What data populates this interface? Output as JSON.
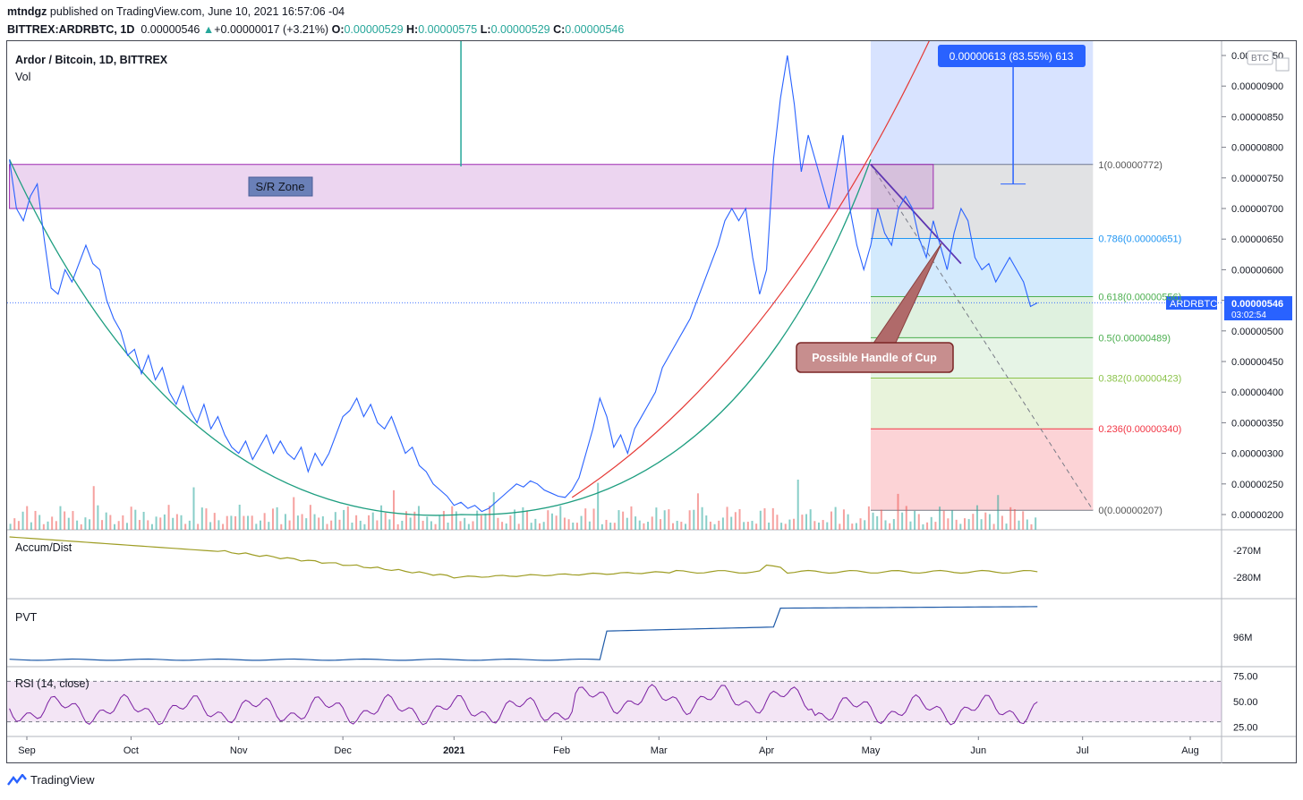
{
  "header": {
    "publisher": "mtndgz",
    "published_text": "published on TradingView.com, June 10, 2021 16:57:06 -04",
    "symbol": "BITTREX:ARDRBTC, 1D",
    "last": "0.00000546",
    "change": "+0.00000017 (+3.21%)",
    "open_label": "O:",
    "open": "0.00000529",
    "high_label": "H:",
    "high": "0.00000575",
    "low_label": "L:",
    "low": "0.00000529",
    "close_label": "C:",
    "close": "0.00000546"
  },
  "main_pane": {
    "title": "Ardor / Bitcoin, 1D, BITTREX",
    "vol_label": "Vol",
    "currency_badge": "BTC",
    "price_tag_symbol": "ARDRBTC",
    "price_tag_value": "0.00000546",
    "price_tag_timer": "03:02:54"
  },
  "annotations": {
    "sr_zone": "S/R Zone",
    "handle_label": "Possible Handle of Cup",
    "measure_label": "0.00000613 (83.55%) 613"
  },
  "fib_levels": [
    {
      "label": "1(0.00000772)",
      "value": 772,
      "color": "#787b86"
    },
    {
      "label": "0.786(0.00000651)",
      "value": 651,
      "color": "#2196f3"
    },
    {
      "label": "0.618(0.00000556)",
      "value": 556,
      "color": "#4caf50"
    },
    {
      "label": "0.5(0.00000489)",
      "value": 489,
      "color": "#4caf50"
    },
    {
      "label": "0.382(0.00000423)",
      "value": 423,
      "color": "#8bc34a"
    },
    {
      "label": "0.236(0.00000340)",
      "value": 340,
      "color": "#f23645"
    },
    {
      "label": "0(0.00000207)",
      "value": 207,
      "color": "#787b86"
    }
  ],
  "indicators": {
    "accum_label": "Accum/Dist",
    "accum_ticks": [
      "-270M",
      "-280M"
    ],
    "pvt_label": "PVT",
    "pvt_ticks": [
      "96M"
    ],
    "rsi_label": "RSI (14, close)",
    "rsi_ticks": [
      "75.00",
      "50.00",
      "25.00"
    ]
  },
  "footer": {
    "brand": "TradingView"
  },
  "chart_data": {
    "type": "line",
    "title": "Ardor / Bitcoin, 1D, BITTREX",
    "x_unit": "day",
    "x_labels": [
      {
        "label": "Sep",
        "day": 243
      },
      {
        "label": "Oct",
        "day": 273
      },
      {
        "label": "Nov",
        "day": 304
      },
      {
        "label": "Dec",
        "day": 334
      },
      {
        "label": "2021",
        "day": 366
      },
      {
        "label": "Feb",
        "day": 397
      },
      {
        "label": "Mar",
        "day": 425
      },
      {
        "label": "Apr",
        "day": 456
      },
      {
        "label": "May",
        "day": 486
      },
      {
        "label": "Jun",
        "day": 517
      },
      {
        "label": "Jul",
        "day": 547
      },
      {
        "label": "Aug",
        "day": 578
      }
    ],
    "y_unit": "satoshi (1e-8 BTC)",
    "y_range": [
      185,
      990
    ],
    "y_ticks": [
      "0.00000200",
      "0.00000250",
      "0.00000300",
      "0.00000350",
      "0.00000400",
      "0.00000450",
      "0.00000500",
      "0.00000550",
      "0.00000600",
      "0.00000650",
      "0.00000700",
      "0.00000750",
      "0.00000800",
      "0.00000850",
      "0.00000900",
      "0.00000950"
    ],
    "price_series": {
      "name": "ARDRBTC",
      "points": [
        [
          238,
          780
        ],
        [
          240,
          700
        ],
        [
          242,
          680
        ],
        [
          244,
          720
        ],
        [
          246,
          740
        ],
        [
          248,
          650
        ],
        [
          250,
          570
        ],
        [
          252,
          560
        ],
        [
          254,
          600
        ],
        [
          256,
          580
        ],
        [
          258,
          610
        ],
        [
          260,
          640
        ],
        [
          262,
          610
        ],
        [
          264,
          600
        ],
        [
          266,
          550
        ],
        [
          268,
          520
        ],
        [
          270,
          500
        ],
        [
          272,
          460
        ],
        [
          274,
          470
        ],
        [
          276,
          430
        ],
        [
          278,
          460
        ],
        [
          280,
          420
        ],
        [
          282,
          440
        ],
        [
          284,
          400
        ],
        [
          286,
          380
        ],
        [
          288,
          410
        ],
        [
          290,
          370
        ],
        [
          292,
          350
        ],
        [
          294,
          380
        ],
        [
          296,
          340
        ],
        [
          298,
          360
        ],
        [
          300,
          330
        ],
        [
          302,
          310
        ],
        [
          304,
          300
        ],
        [
          306,
          320
        ],
        [
          308,
          290
        ],
        [
          310,
          310
        ],
        [
          312,
          330
        ],
        [
          314,
          300
        ],
        [
          316,
          320
        ],
        [
          318,
          300
        ],
        [
          320,
          290
        ],
        [
          322,
          310
        ],
        [
          324,
          270
        ],
        [
          326,
          300
        ],
        [
          328,
          280
        ],
        [
          330,
          300
        ],
        [
          332,
          330
        ],
        [
          334,
          360
        ],
        [
          336,
          370
        ],
        [
          338,
          390
        ],
        [
          340,
          360
        ],
        [
          342,
          380
        ],
        [
          344,
          350
        ],
        [
          346,
          340
        ],
        [
          348,
          360
        ],
        [
          350,
          330
        ],
        [
          352,
          300
        ],
        [
          354,
          310
        ],
        [
          356,
          280
        ],
        [
          358,
          270
        ],
        [
          360,
          250
        ],
        [
          362,
          240
        ],
        [
          364,
          230
        ],
        [
          366,
          215
        ],
        [
          368,
          220
        ],
        [
          370,
          210
        ],
        [
          372,
          215
        ],
        [
          374,
          205
        ],
        [
          376,
          210
        ],
        [
          378,
          220
        ],
        [
          380,
          230
        ],
        [
          382,
          240
        ],
        [
          384,
          250
        ],
        [
          386,
          245
        ],
        [
          388,
          255
        ],
        [
          390,
          250
        ],
        [
          392,
          240
        ],
        [
          394,
          235
        ],
        [
          396,
          230
        ],
        [
          398,
          228
        ],
        [
          400,
          240
        ],
        [
          402,
          260
        ],
        [
          404,
          300
        ],
        [
          406,
          340
        ],
        [
          408,
          390
        ],
        [
          410,
          360
        ],
        [
          412,
          310
        ],
        [
          414,
          330
        ],
        [
          416,
          300
        ],
        [
          418,
          340
        ],
        [
          420,
          360
        ],
        [
          422,
          380
        ],
        [
          424,
          400
        ],
        [
          426,
          440
        ],
        [
          428,
          460
        ],
        [
          430,
          480
        ],
        [
          432,
          500
        ],
        [
          434,
          520
        ],
        [
          436,
          550
        ],
        [
          438,
          580
        ],
        [
          440,
          610
        ],
        [
          442,
          640
        ],
        [
          444,
          680
        ],
        [
          446,
          700
        ],
        [
          448,
          680
        ],
        [
          450,
          700
        ],
        [
          452,
          620
        ],
        [
          454,
          560
        ],
        [
          456,
          600
        ],
        [
          458,
          780
        ],
        [
          460,
          880
        ],
        [
          462,
          950
        ],
        [
          464,
          870
        ],
        [
          466,
          760
        ],
        [
          468,
          820
        ],
        [
          470,
          780
        ],
        [
          472,
          740
        ],
        [
          474,
          700
        ],
        [
          476,
          760
        ],
        [
          478,
          820
        ],
        [
          480,
          700
        ],
        [
          482,
          640
        ],
        [
          484,
          600
        ],
        [
          486,
          640
        ],
        [
          488,
          700
        ],
        [
          490,
          660
        ],
        [
          492,
          640
        ],
        [
          494,
          700
        ],
        [
          496,
          720
        ],
        [
          498,
          700
        ],
        [
          500,
          650
        ],
        [
          502,
          620
        ],
        [
          504,
          680
        ],
        [
          506,
          640
        ],
        [
          508,
          600
        ],
        [
          510,
          660
        ],
        [
          512,
          700
        ],
        [
          514,
          680
        ],
        [
          516,
          620
        ],
        [
          518,
          600
        ],
        [
          520,
          610
        ],
        [
          522,
          580
        ],
        [
          524,
          600
        ],
        [
          526,
          620
        ],
        [
          528,
          600
        ],
        [
          530,
          580
        ],
        [
          532,
          540
        ],
        [
          534,
          546
        ]
      ]
    },
    "sr_zone": {
      "from_day": 238,
      "to_day": 504,
      "low": 700,
      "high": 772
    },
    "cup_curve": {
      "start": [
        238,
        780
      ],
      "bottom": [
        368,
        200
      ],
      "end": [
        486,
        780
      ]
    },
    "handle_line": {
      "from": [
        486,
        772
      ],
      "to": [
        512,
        610
      ]
    },
    "measure": {
      "from_day": 486,
      "to_day": 550,
      "low": 207,
      "high": 990
    },
    "rsi": {
      "overbought": 70,
      "oversold": 30
    },
    "accum_dist_range": [
      -285,
      -265
    ],
    "pvt_range": [
      90,
      104
    ]
  }
}
